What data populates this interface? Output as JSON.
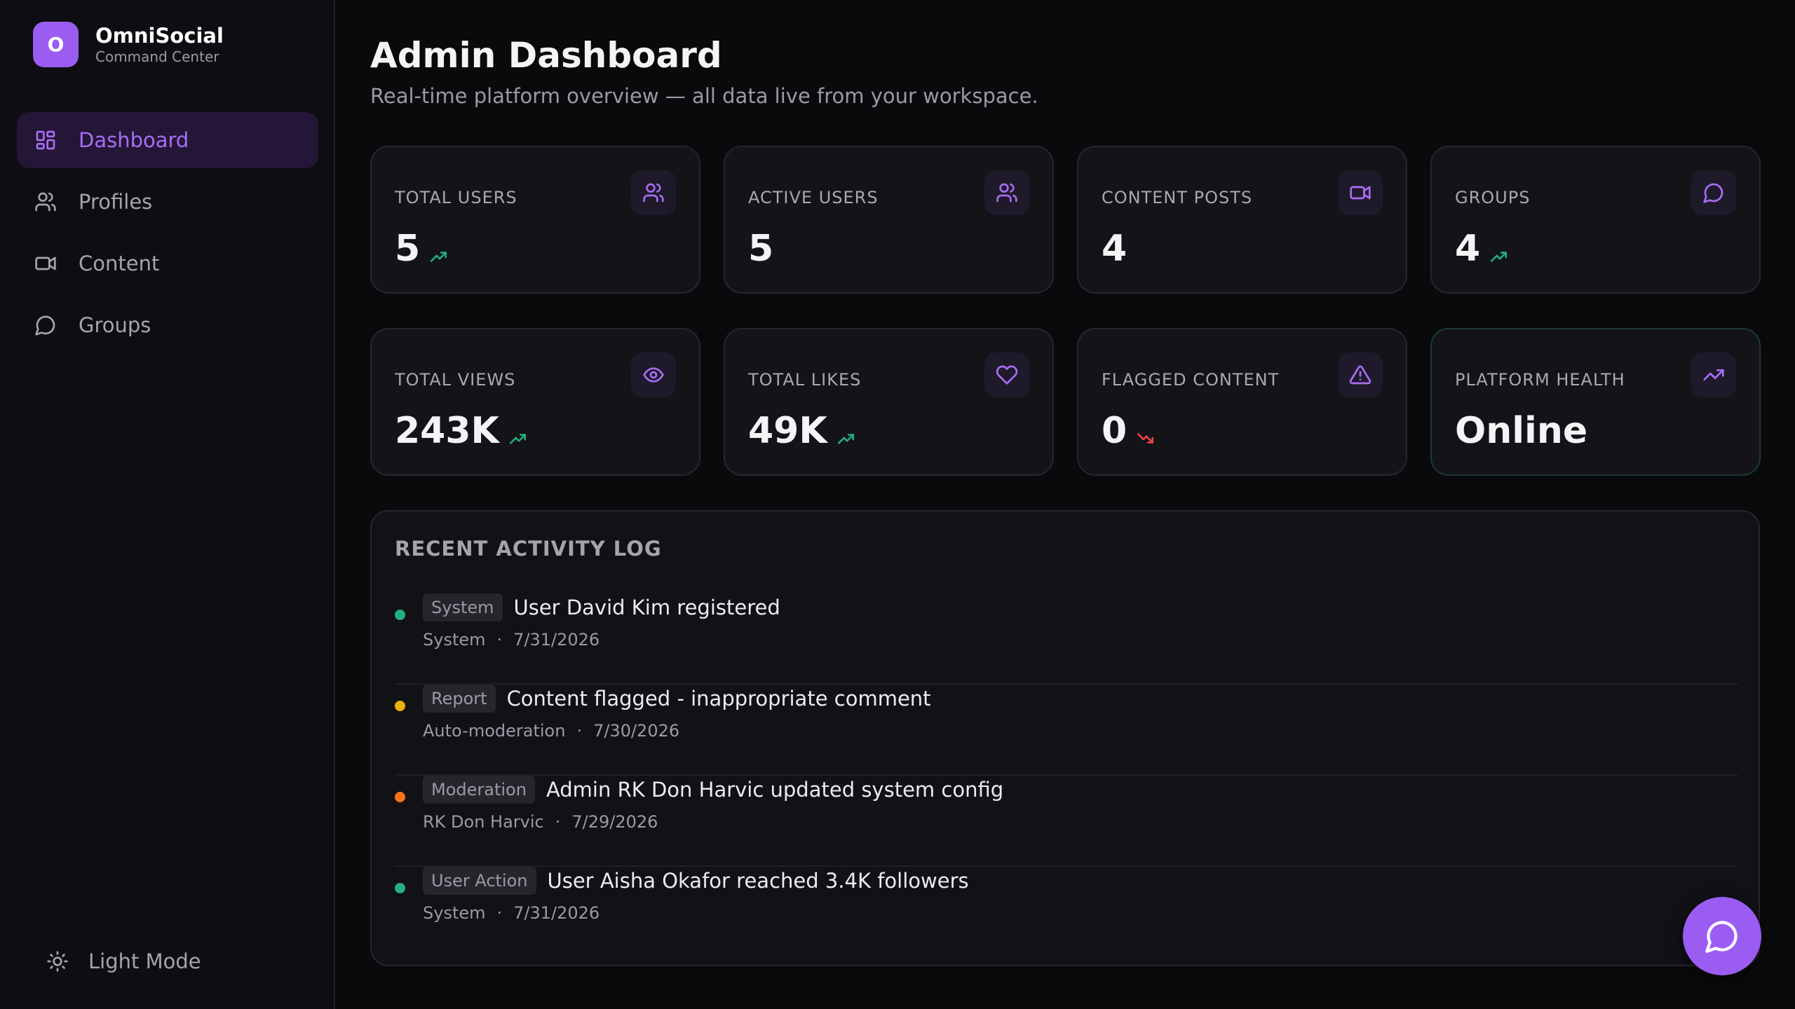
{
  "brand": {
    "logo_letter": "O",
    "name": "OmniSocial",
    "subtitle": "Command Center"
  },
  "sidebar": {
    "items": [
      {
        "label": "Dashboard",
        "icon": "dashboard-icon",
        "active": true
      },
      {
        "label": "Profiles",
        "icon": "users-icon",
        "active": false
      },
      {
        "label": "Content",
        "icon": "video-icon",
        "active": false
      },
      {
        "label": "Groups",
        "icon": "chat-bubble-icon",
        "active": false
      }
    ],
    "theme_toggle": {
      "label": "Light Mode",
      "icon": "sun-icon"
    }
  },
  "header": {
    "title": "Admin Dashboard",
    "subtitle": "Real-time platform overview — all data live from your workspace."
  },
  "stats": [
    {
      "label": "Total Users",
      "value": "5",
      "icon": "users-icon",
      "trend": "up"
    },
    {
      "label": "Active Users",
      "value": "5",
      "icon": "users-icon",
      "trend": "none"
    },
    {
      "label": "Content Posts",
      "value": "4",
      "icon": "video-icon",
      "trend": "none"
    },
    {
      "label": "Groups",
      "value": "4",
      "icon": "chat-bubble-icon",
      "trend": "up"
    },
    {
      "label": "Total Views",
      "value": "243K",
      "icon": "eye-icon",
      "trend": "up"
    },
    {
      "label": "Total Likes",
      "value": "49K",
      "icon": "heart-icon",
      "trend": "up"
    },
    {
      "label": "Flagged Content",
      "value": "0",
      "icon": "alert-triangle-icon",
      "trend": "down"
    },
    {
      "label": "Platform Health",
      "value": "Online",
      "icon": "trending-up-icon",
      "trend": "none"
    }
  ],
  "activity": {
    "title": "RECENT ACTIVITY LOG",
    "items": [
      {
        "tag": "System",
        "message": "User David Kim registered",
        "source": "System",
        "date": "7/31/2026",
        "dot_color": "#22b07d"
      },
      {
        "tag": "Report",
        "message": "Content flagged - inappropriate comment",
        "source": "Auto-moderation",
        "date": "7/30/2026",
        "dot_color": "#eab308"
      },
      {
        "tag": "Moderation",
        "message": "Admin RK Don Harvic updated system config",
        "source": "RK Don Harvic",
        "date": "7/29/2026",
        "dot_color": "#f97316"
      },
      {
        "tag": "User Action",
        "message": "User Aisha Okafor reached 3.4K followers",
        "source": "System",
        "date": "7/31/2026",
        "dot_color": "#22b07d"
      }
    ]
  },
  "chat_fab": {
    "icon": "chat-bubble-icon"
  },
  "colors": {
    "accent": "#9b5cf2",
    "trend_up": "#22b07d",
    "trend_down": "#ef4444"
  }
}
